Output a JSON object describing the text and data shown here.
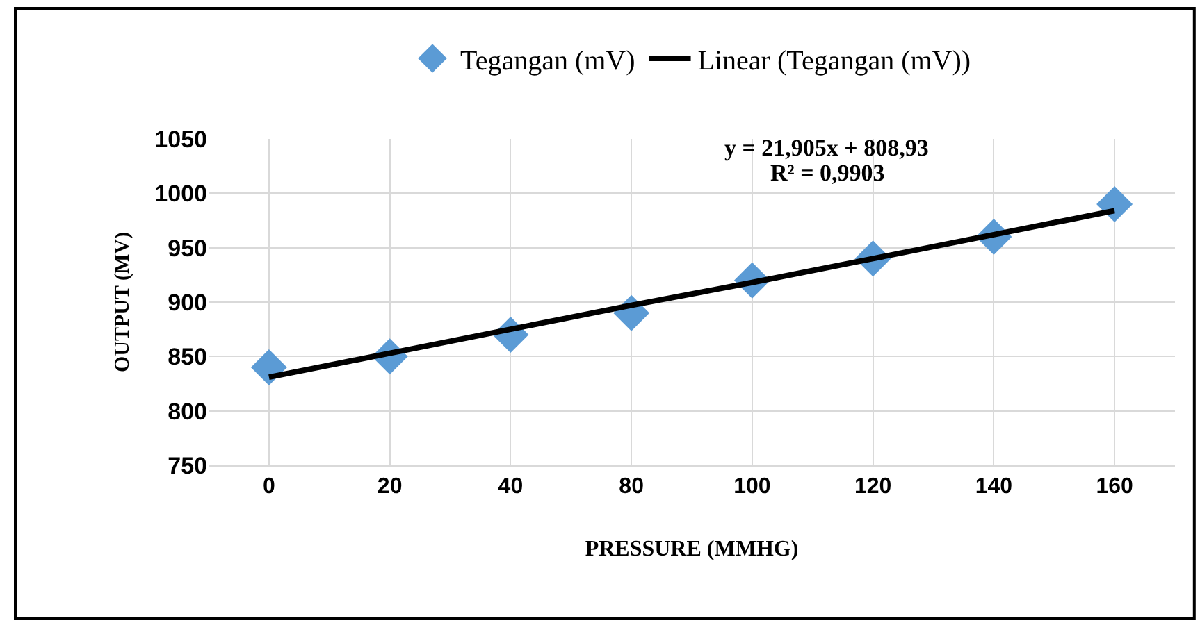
{
  "chart_data": {
    "type": "scatter",
    "xlabel": "PRESSURE (MMHG)",
    "ylabel": "OUTPUT (MV)",
    "categories": [
      "0",
      "20",
      "40",
      "80",
      "100",
      "120",
      "140",
      "160"
    ],
    "series": [
      {
        "name": "Tegangan (mV)",
        "marker": "diamond",
        "color": "#5b9bd5",
        "values": [
          840,
          850,
          870,
          890,
          920,
          940,
          960,
          990
        ]
      },
      {
        "name": "Linear (Tegangan (mV))",
        "type": "line",
        "marker": "none",
        "color": "#000000",
        "values": [
          831,
          853,
          875,
          897,
          918,
          940,
          962,
          984
        ]
      }
    ],
    "annotations": [
      "y = 21,905x + 808,93",
      "R² = 0,9903"
    ],
    "ylim": [
      750,
      1050
    ],
    "yticks": [
      750,
      800,
      850,
      900,
      950,
      1000,
      1050
    ],
    "grid": true,
    "legend": "top",
    "line_style": "solid"
  }
}
